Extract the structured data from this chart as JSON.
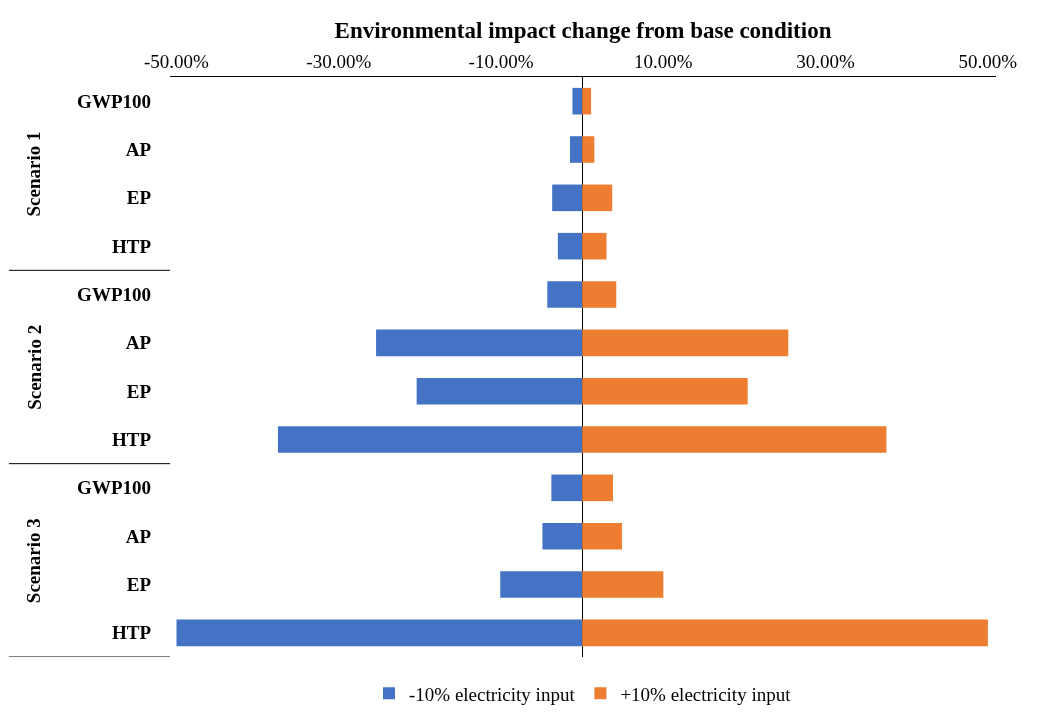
{
  "chart_data": {
    "type": "bar",
    "orientation": "horizontal",
    "stacked": true,
    "xlabel": "Environmental impact change from base condition",
    "categories": [
      "GWP100",
      "AP",
      "EP",
      "HTP",
      "GWP100",
      "AP",
      "EP",
      "HTP",
      "GWP100",
      "AP",
      "EP",
      "HTP"
    ],
    "series": [
      {
        "name": "-10% electricity input",
        "color": "#4472c4",
        "values": [
          -1.2,
          -1.5,
          -3.7,
          -3.0,
          -4.3,
          -25.4,
          -20.4,
          -37.5,
          -3.8,
          -4.9,
          -10.1,
          -50.0
        ]
      },
      {
        "name": "+10% electricity input",
        "color": "#ed7d31",
        "values": [
          1.1,
          1.5,
          3.7,
          3.0,
          4.2,
          25.4,
          20.4,
          37.5,
          3.8,
          4.9,
          10.0,
          50.0
        ]
      }
    ],
    "xlim": [
      -50.8,
      51.0
    ],
    "xticks": [
      {
        "value": -50,
        "label": "-50.00%"
      },
      {
        "value": -30,
        "label": "-30.00%"
      },
      {
        "value": -10,
        "label": "-10.00%"
      },
      {
        "value": 10,
        "label": "10.00%"
      },
      {
        "value": 30,
        "label": "30.00%"
      },
      {
        "value": 50,
        "label": "50.00%"
      }
    ],
    "annotations": [
      "Scenario 1",
      "Scenario 2",
      "Scenario 3"
    ],
    "grid": false,
    "legend": "bottom"
  }
}
